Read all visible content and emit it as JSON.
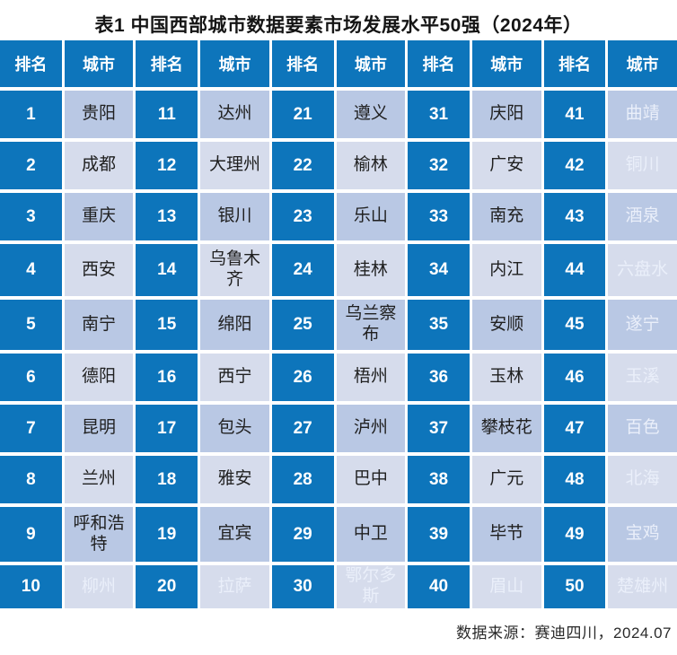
{
  "title": "表1 中国西部城市数据要素市场发展水平50强（2024年）",
  "footer": {
    "source": "数据来源：赛迪四川，2024.07"
  },
  "colors": {
    "header_blue": "#0d75bb",
    "rank_blue": "#0d75bb",
    "city_row_dark": "#b9c8e4",
    "city_row_light": "#d6dcec",
    "header_text": "#ffffff",
    "rank_text": "#ffffff",
    "city_text": "#202020",
    "muted_city_text": "#eaeffa",
    "title_text": "#151515",
    "footer_text": "#2a2a2a",
    "gap_white": "#ffffff"
  },
  "chart_data": {
    "type": "table",
    "title": "表1 中国西部城市数据要素市场发展水平50强（2024年）",
    "columns": [
      "排名",
      "城市",
      "排名",
      "城市",
      "排名",
      "城市",
      "排名",
      "城市",
      "排名",
      "城市"
    ],
    "rows": [
      [
        "1",
        "贵阳",
        "11",
        "达州",
        "21",
        "遵义",
        "31",
        "庆阳",
        "41",
        "曲靖"
      ],
      [
        "2",
        "成都",
        "12",
        "大理州",
        "22",
        "榆林",
        "32",
        "广安",
        "42",
        "铜川"
      ],
      [
        "3",
        "重庆",
        "13",
        "银川",
        "23",
        "乐山",
        "33",
        "南充",
        "43",
        "酒泉"
      ],
      [
        "4",
        "西安",
        "14",
        "乌鲁木齐",
        "24",
        "桂林",
        "34",
        "内江",
        "44",
        "六盘水"
      ],
      [
        "5",
        "南宁",
        "15",
        "绵阳",
        "25",
        "乌兰察布",
        "35",
        "安顺",
        "45",
        "遂宁"
      ],
      [
        "6",
        "德阳",
        "16",
        "西宁",
        "26",
        "梧州",
        "36",
        "玉林",
        "46",
        "玉溪"
      ],
      [
        "7",
        "昆明",
        "17",
        "包头",
        "27",
        "泸州",
        "37",
        "攀枝花",
        "47",
        "百色"
      ],
      [
        "8",
        "兰州",
        "18",
        "雅安",
        "28",
        "巴中",
        "38",
        "广元",
        "48",
        "北海"
      ],
      [
        "9",
        "呼和浩特",
        "19",
        "宜宾",
        "29",
        "中卫",
        "39",
        "毕节",
        "49",
        "宝鸡"
      ],
      [
        "10",
        "柳州",
        "20",
        "拉萨",
        "30",
        "鄂尔多斯",
        "40",
        "眉山",
        "50",
        "楚雄州"
      ]
    ],
    "source_note": "数据来源：赛迪四川，2024.07",
    "layout_hints": {
      "column_pairs": 5,
      "rows_per_column": 10,
      "alternating_city_row_shading": true,
      "washed_out_text_cells": "last row and last city column"
    }
  }
}
